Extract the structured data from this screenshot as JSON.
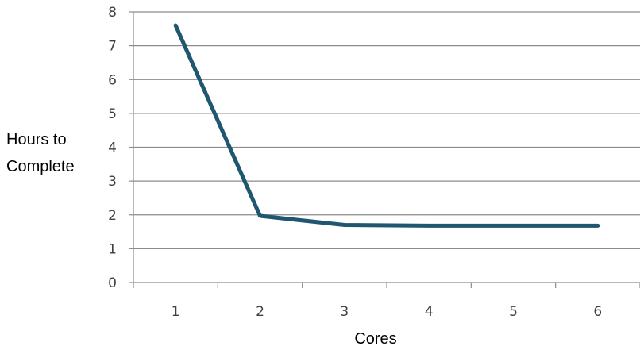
{
  "chart_data": {
    "type": "line",
    "title": "",
    "xlabel": "Cores",
    "ylabel_lines": [
      "Hours to",
      "Complete"
    ],
    "categories": [
      "1",
      "2",
      "3",
      "4",
      "5",
      "6"
    ],
    "series": [
      {
        "values": [
          7.6,
          1.97,
          1.7,
          1.68,
          1.68,
          1.68
        ]
      }
    ],
    "ylim": [
      0,
      8
    ],
    "yticks": [
      "0",
      "1",
      "2",
      "3",
      "4",
      "5",
      "6",
      "7",
      "8"
    ],
    "grid": true,
    "legend": "none",
    "colors": {
      "line": "#1f5670",
      "grid": "#8c8c8c",
      "axis": "#8c8c8c",
      "tick_text": "#404040"
    }
  }
}
